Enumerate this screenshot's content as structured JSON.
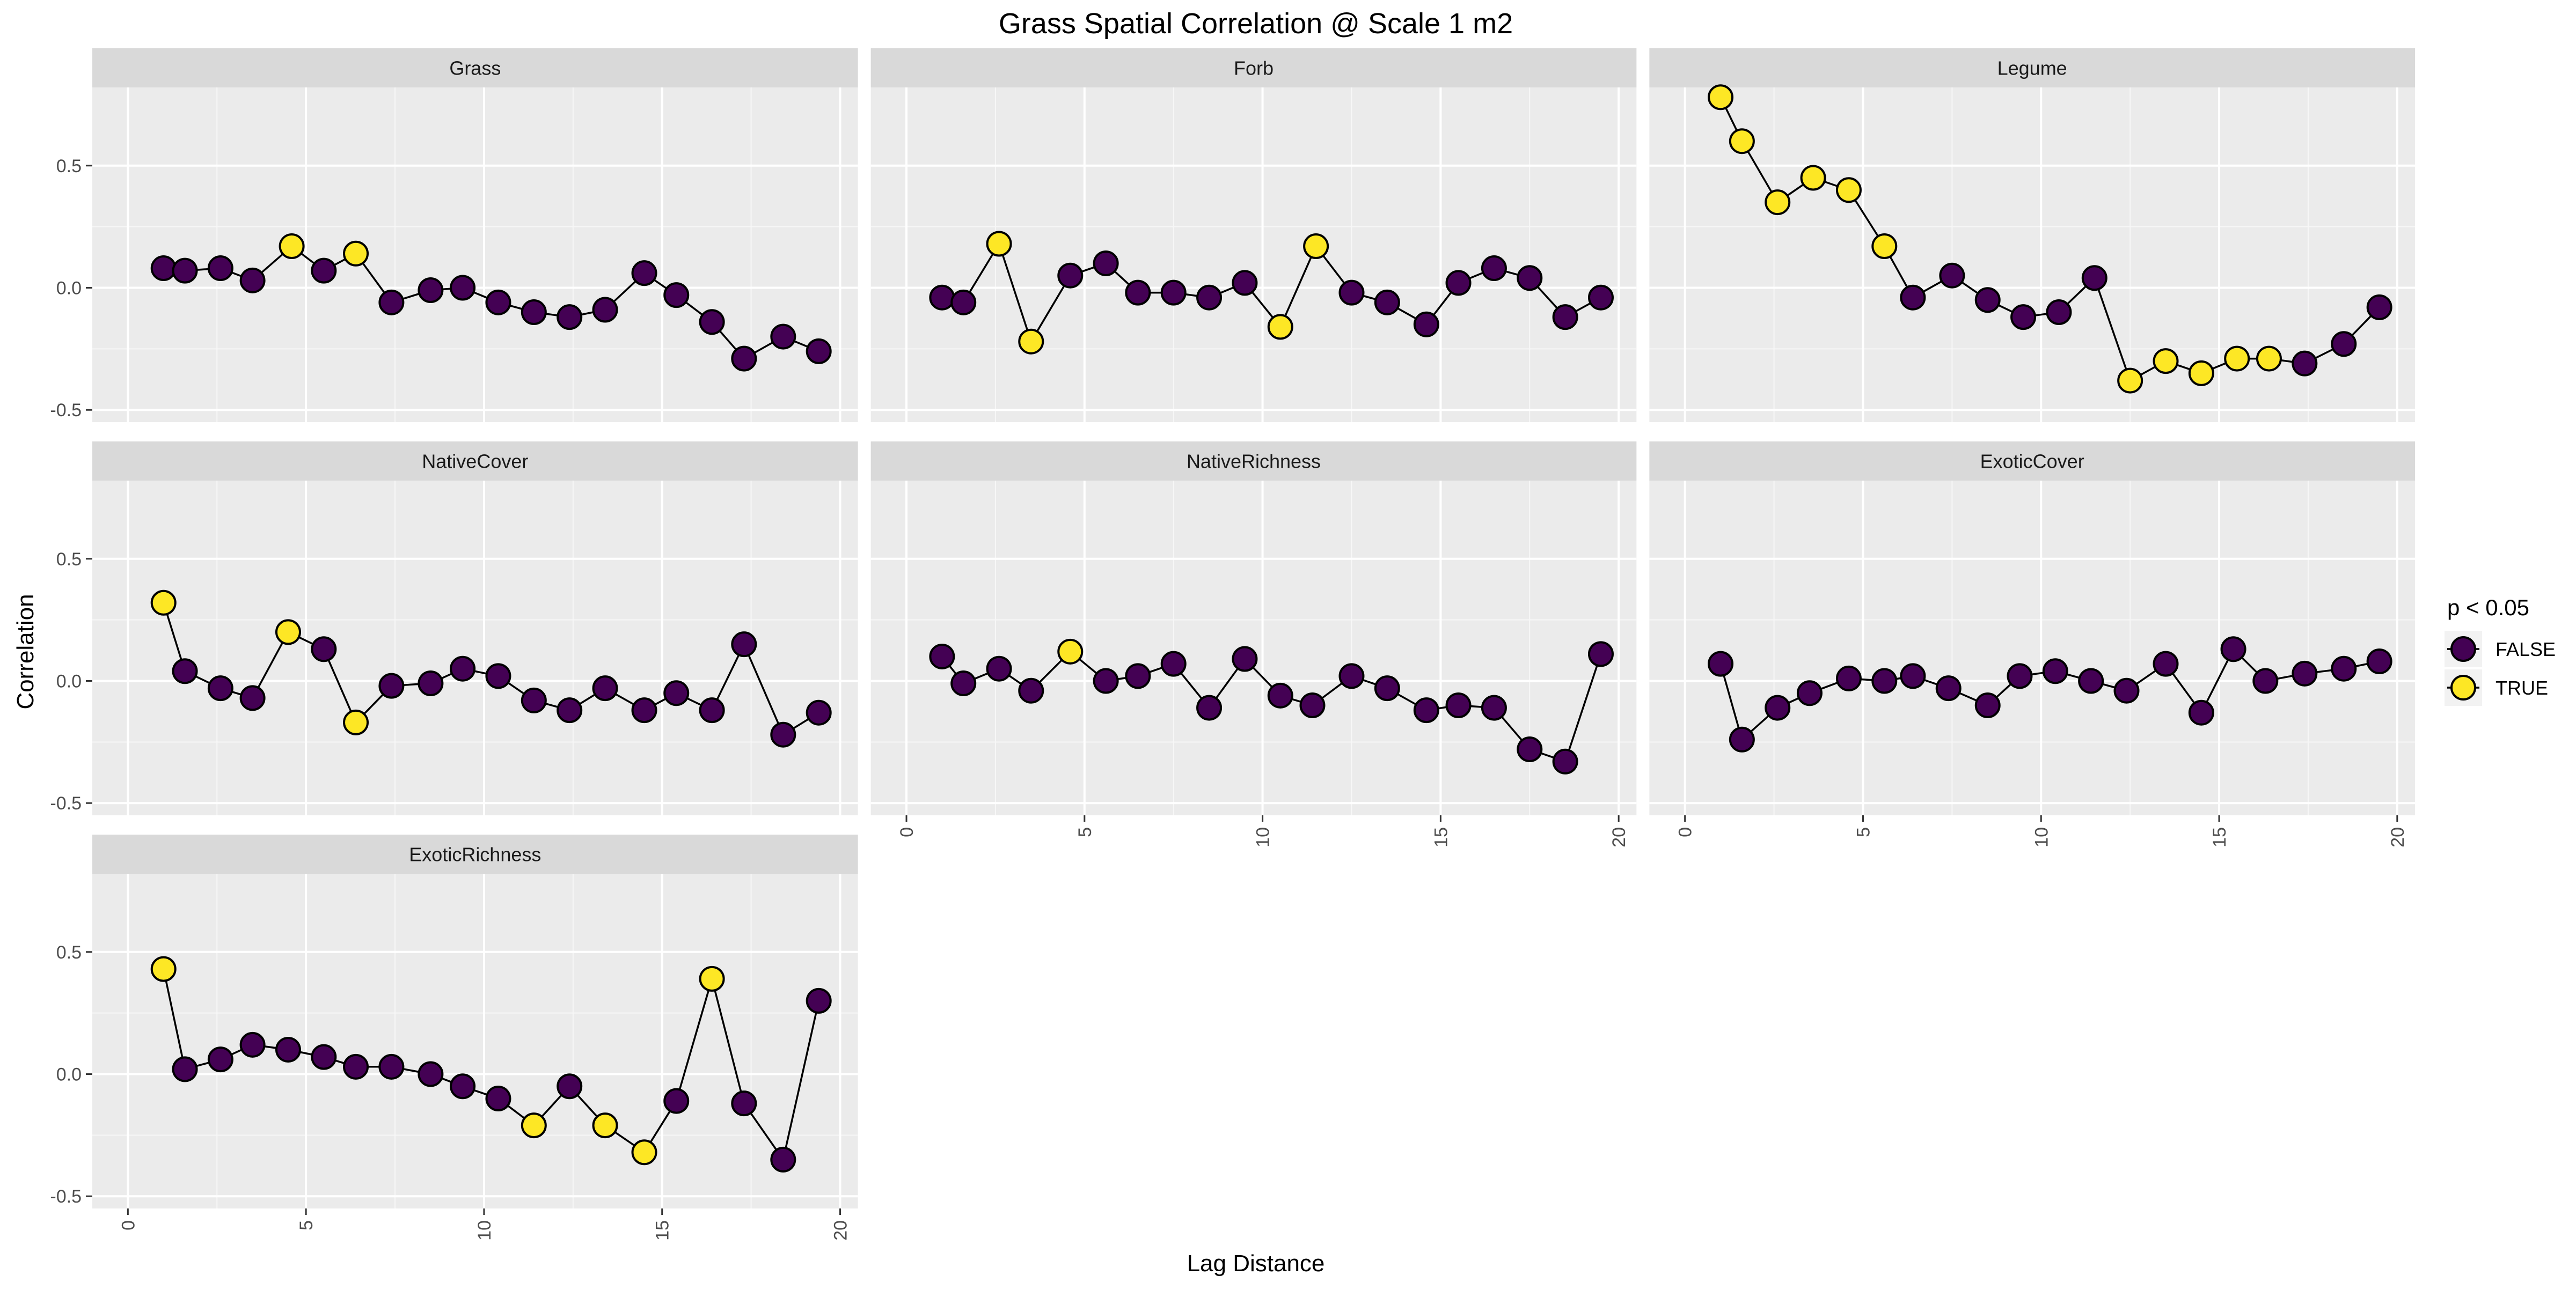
{
  "chart_data": {
    "type": "scatter",
    "title": "Grass Spatial Correlation @ Scale 1 m2",
    "xlabel": "Lag Distance",
    "ylabel": "Correlation",
    "xlim": [
      -1,
      20.5
    ],
    "ylim": [
      -0.55,
      0.82
    ],
    "x_ticks": [
      0,
      5,
      10,
      15,
      20
    ],
    "y_ticks": [
      -0.5,
      0.0,
      0.5
    ],
    "y_tick_labels": [
      "-0.5",
      "0.0",
      "0.5"
    ],
    "grid": true,
    "points_connected": true,
    "legend": {
      "title": "p < 0.05",
      "position": "right",
      "entries": [
        {
          "label": "FALSE",
          "color": "#440154"
        },
        {
          "label": "TRUE",
          "color": "#FDE725"
        }
      ]
    },
    "layout": {
      "columns": 3
    },
    "panels": [
      {
        "name": "Grass",
        "points": [
          {
            "x": 1.0,
            "y": 0.08,
            "sig": false
          },
          {
            "x": 1.6,
            "y": 0.07,
            "sig": false
          },
          {
            "x": 2.6,
            "y": 0.08,
            "sig": false
          },
          {
            "x": 3.5,
            "y": 0.03,
            "sig": false
          },
          {
            "x": 4.6,
            "y": 0.17,
            "sig": true
          },
          {
            "x": 5.5,
            "y": 0.07,
            "sig": false
          },
          {
            "x": 6.4,
            "y": 0.14,
            "sig": true
          },
          {
            "x": 7.4,
            "y": -0.06,
            "sig": false
          },
          {
            "x": 8.5,
            "y": -0.01,
            "sig": false
          },
          {
            "x": 9.4,
            "y": 0.0,
            "sig": false
          },
          {
            "x": 10.4,
            "y": -0.06,
            "sig": false
          },
          {
            "x": 11.4,
            "y": -0.1,
            "sig": false
          },
          {
            "x": 12.4,
            "y": -0.12,
            "sig": false
          },
          {
            "x": 13.4,
            "y": -0.09,
            "sig": false
          },
          {
            "x": 14.5,
            "y": 0.06,
            "sig": false
          },
          {
            "x": 15.4,
            "y": -0.03,
            "sig": false
          },
          {
            "x": 16.4,
            "y": -0.14,
            "sig": false
          },
          {
            "x": 17.3,
            "y": -0.29,
            "sig": false
          },
          {
            "x": 18.4,
            "y": -0.2,
            "sig": false
          },
          {
            "x": 19.4,
            "y": -0.26,
            "sig": false
          }
        ]
      },
      {
        "name": "Forb",
        "points": [
          {
            "x": 1.0,
            "y": -0.04,
            "sig": false
          },
          {
            "x": 1.6,
            "y": -0.06,
            "sig": false
          },
          {
            "x": 2.6,
            "y": 0.18,
            "sig": true
          },
          {
            "x": 3.5,
            "y": -0.22,
            "sig": true
          },
          {
            "x": 4.6,
            "y": 0.05,
            "sig": false
          },
          {
            "x": 5.6,
            "y": 0.1,
            "sig": false
          },
          {
            "x": 6.5,
            "y": -0.02,
            "sig": false
          },
          {
            "x": 7.5,
            "y": -0.02,
            "sig": false
          },
          {
            "x": 8.5,
            "y": -0.04,
            "sig": false
          },
          {
            "x": 9.5,
            "y": 0.02,
            "sig": false
          },
          {
            "x": 10.5,
            "y": -0.16,
            "sig": true
          },
          {
            "x": 11.5,
            "y": 0.17,
            "sig": true
          },
          {
            "x": 12.5,
            "y": -0.02,
            "sig": false
          },
          {
            "x": 13.5,
            "y": -0.06,
            "sig": false
          },
          {
            "x": 14.6,
            "y": -0.15,
            "sig": false
          },
          {
            "x": 15.5,
            "y": 0.02,
            "sig": false
          },
          {
            "x": 16.5,
            "y": 0.08,
            "sig": false
          },
          {
            "x": 17.5,
            "y": 0.04,
            "sig": false
          },
          {
            "x": 18.5,
            "y": -0.12,
            "sig": false
          },
          {
            "x": 19.5,
            "y": -0.04,
            "sig": false
          }
        ]
      },
      {
        "name": "Legume",
        "points": [
          {
            "x": 1.0,
            "y": 0.78,
            "sig": true
          },
          {
            "x": 1.6,
            "y": 0.6,
            "sig": true
          },
          {
            "x": 2.6,
            "y": 0.35,
            "sig": true
          },
          {
            "x": 3.6,
            "y": 0.45,
            "sig": true
          },
          {
            "x": 4.6,
            "y": 0.4,
            "sig": true
          },
          {
            "x": 5.6,
            "y": 0.17,
            "sig": true
          },
          {
            "x": 6.4,
            "y": -0.04,
            "sig": false
          },
          {
            "x": 7.5,
            "y": 0.05,
            "sig": false
          },
          {
            "x": 8.5,
            "y": -0.05,
            "sig": false
          },
          {
            "x": 9.5,
            "y": -0.12,
            "sig": false
          },
          {
            "x": 10.5,
            "y": -0.1,
            "sig": false
          },
          {
            "x": 11.5,
            "y": 0.04,
            "sig": false
          },
          {
            "x": 12.5,
            "y": -0.38,
            "sig": true
          },
          {
            "x": 13.5,
            "y": -0.3,
            "sig": true
          },
          {
            "x": 14.5,
            "y": -0.35,
            "sig": true
          },
          {
            "x": 15.5,
            "y": -0.29,
            "sig": true
          },
          {
            "x": 16.4,
            "y": -0.29,
            "sig": true
          },
          {
            "x": 17.4,
            "y": -0.31,
            "sig": false
          },
          {
            "x": 18.5,
            "y": -0.23,
            "sig": false
          },
          {
            "x": 19.5,
            "y": -0.08,
            "sig": false
          }
        ]
      },
      {
        "name": "NativeCover",
        "points": [
          {
            "x": 1.0,
            "y": 0.32,
            "sig": true
          },
          {
            "x": 1.6,
            "y": 0.04,
            "sig": false
          },
          {
            "x": 2.6,
            "y": -0.03,
            "sig": false
          },
          {
            "x": 3.5,
            "y": -0.07,
            "sig": false
          },
          {
            "x": 4.5,
            "y": 0.2,
            "sig": true
          },
          {
            "x": 5.5,
            "y": 0.13,
            "sig": false
          },
          {
            "x": 6.4,
            "y": -0.17,
            "sig": true
          },
          {
            "x": 7.4,
            "y": -0.02,
            "sig": false
          },
          {
            "x": 8.5,
            "y": -0.01,
            "sig": false
          },
          {
            "x": 9.4,
            "y": 0.05,
            "sig": false
          },
          {
            "x": 10.4,
            "y": 0.02,
            "sig": false
          },
          {
            "x": 11.4,
            "y": -0.08,
            "sig": false
          },
          {
            "x": 12.4,
            "y": -0.12,
            "sig": false
          },
          {
            "x": 13.4,
            "y": -0.03,
            "sig": false
          },
          {
            "x": 14.5,
            "y": -0.12,
            "sig": false
          },
          {
            "x": 15.4,
            "y": -0.05,
            "sig": false
          },
          {
            "x": 16.4,
            "y": -0.12,
            "sig": false
          },
          {
            "x": 17.3,
            "y": 0.15,
            "sig": false
          },
          {
            "x": 18.4,
            "y": -0.22,
            "sig": false
          },
          {
            "x": 19.4,
            "y": -0.13,
            "sig": false
          }
        ]
      },
      {
        "name": "NativeRichness",
        "points": [
          {
            "x": 1.0,
            "y": 0.1,
            "sig": false
          },
          {
            "x": 1.6,
            "y": -0.01,
            "sig": false
          },
          {
            "x": 2.6,
            "y": 0.05,
            "sig": false
          },
          {
            "x": 3.5,
            "y": -0.04,
            "sig": false
          },
          {
            "x": 4.6,
            "y": 0.12,
            "sig": true
          },
          {
            "x": 5.6,
            "y": 0.0,
            "sig": false
          },
          {
            "x": 6.5,
            "y": 0.02,
            "sig": false
          },
          {
            "x": 7.5,
            "y": 0.07,
            "sig": false
          },
          {
            "x": 8.5,
            "y": -0.11,
            "sig": false
          },
          {
            "x": 9.5,
            "y": 0.09,
            "sig": false
          },
          {
            "x": 10.5,
            "y": -0.06,
            "sig": false
          },
          {
            "x": 11.4,
            "y": -0.1,
            "sig": false
          },
          {
            "x": 12.5,
            "y": 0.02,
            "sig": false
          },
          {
            "x": 13.5,
            "y": -0.03,
            "sig": false
          },
          {
            "x": 14.6,
            "y": -0.12,
            "sig": false
          },
          {
            "x": 15.5,
            "y": -0.1,
            "sig": false
          },
          {
            "x": 16.5,
            "y": -0.11,
            "sig": false
          },
          {
            "x": 17.5,
            "y": -0.28,
            "sig": false
          },
          {
            "x": 18.5,
            "y": -0.33,
            "sig": false
          },
          {
            "x": 19.5,
            "y": 0.11,
            "sig": false
          }
        ]
      },
      {
        "name": "ExoticCover",
        "points": [
          {
            "x": 1.0,
            "y": 0.07,
            "sig": false
          },
          {
            "x": 1.6,
            "y": -0.24,
            "sig": false
          },
          {
            "x": 2.6,
            "y": -0.11,
            "sig": false
          },
          {
            "x": 3.5,
            "y": -0.05,
            "sig": false
          },
          {
            "x": 4.6,
            "y": 0.01,
            "sig": false
          },
          {
            "x": 5.6,
            "y": 0.0,
            "sig": false
          },
          {
            "x": 6.4,
            "y": 0.02,
            "sig": false
          },
          {
            "x": 7.4,
            "y": -0.03,
            "sig": false
          },
          {
            "x": 8.5,
            "y": -0.1,
            "sig": false
          },
          {
            "x": 9.4,
            "y": 0.02,
            "sig": false
          },
          {
            "x": 10.4,
            "y": 0.04,
            "sig": false
          },
          {
            "x": 11.4,
            "y": 0.0,
            "sig": false
          },
          {
            "x": 12.4,
            "y": -0.04,
            "sig": false
          },
          {
            "x": 13.5,
            "y": 0.07,
            "sig": false
          },
          {
            "x": 14.5,
            "y": -0.13,
            "sig": false
          },
          {
            "x": 15.4,
            "y": 0.13,
            "sig": false
          },
          {
            "x": 16.3,
            "y": 0.0,
            "sig": false
          },
          {
            "x": 17.4,
            "y": 0.03,
            "sig": false
          },
          {
            "x": 18.5,
            "y": 0.05,
            "sig": false
          },
          {
            "x": 19.5,
            "y": 0.08,
            "sig": false
          }
        ]
      },
      {
        "name": "ExoticRichness",
        "points": [
          {
            "x": 1.0,
            "y": 0.43,
            "sig": true
          },
          {
            "x": 1.6,
            "y": 0.02,
            "sig": false
          },
          {
            "x": 2.6,
            "y": 0.06,
            "sig": false
          },
          {
            "x": 3.5,
            "y": 0.12,
            "sig": false
          },
          {
            "x": 4.5,
            "y": 0.1,
            "sig": false
          },
          {
            "x": 5.5,
            "y": 0.07,
            "sig": false
          },
          {
            "x": 6.4,
            "y": 0.03,
            "sig": false
          },
          {
            "x": 7.4,
            "y": 0.03,
            "sig": false
          },
          {
            "x": 8.5,
            "y": 0.0,
            "sig": false
          },
          {
            "x": 9.4,
            "y": -0.05,
            "sig": false
          },
          {
            "x": 10.4,
            "y": -0.1,
            "sig": false
          },
          {
            "x": 11.4,
            "y": -0.21,
            "sig": true
          },
          {
            "x": 12.4,
            "y": -0.05,
            "sig": false
          },
          {
            "x": 13.4,
            "y": -0.21,
            "sig": true
          },
          {
            "x": 14.5,
            "y": -0.32,
            "sig": true
          },
          {
            "x": 15.4,
            "y": -0.11,
            "sig": false
          },
          {
            "x": 16.4,
            "y": 0.39,
            "sig": true
          },
          {
            "x": 17.3,
            "y": -0.12,
            "sig": false
          },
          {
            "x": 18.4,
            "y": -0.35,
            "sig": false
          },
          {
            "x": 19.4,
            "y": 0.3,
            "sig": false
          }
        ]
      }
    ]
  }
}
